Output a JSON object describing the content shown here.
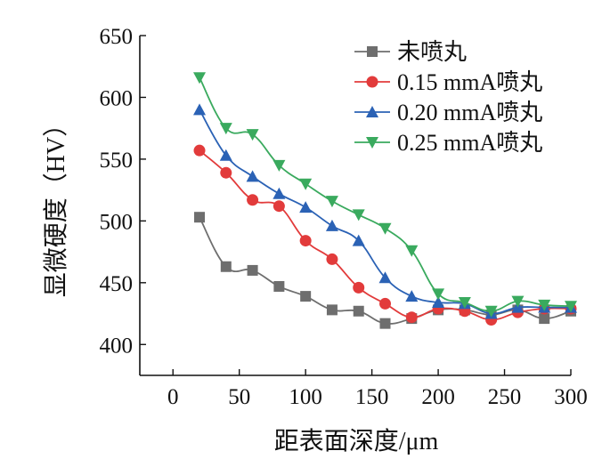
{
  "chart_data": {
    "type": "line",
    "title": "",
    "xlabel": "距表面深度/μm",
    "ylabel": "显微硬度（HV）",
    "xlim": [
      -25,
      300
    ],
    "ylim": [
      375,
      650
    ],
    "xticks": [
      0,
      50,
      100,
      150,
      200,
      250,
      300
    ],
    "yticks": [
      400,
      450,
      500,
      550,
      600,
      650
    ],
    "grid": false,
    "legend_position": "top-right",
    "series": [
      {
        "name": "未喷丸",
        "color": "#6e6e6e",
        "marker": "square",
        "x": [
          20,
          40,
          60,
          80,
          100,
          120,
          140,
          160,
          180,
          200,
          220,
          240,
          260,
          280,
          300
        ],
        "y": [
          503,
          463,
          460,
          447,
          439,
          428,
          427,
          417,
          421,
          428,
          428,
          424,
          428,
          421,
          427
        ]
      },
      {
        "name": "0.15 mmA喷丸",
        "color": "#e23b3b",
        "marker": "circle",
        "x": [
          20,
          40,
          60,
          80,
          100,
          120,
          140,
          160,
          180,
          200,
          220,
          240,
          260,
          280,
          300
        ],
        "y": [
          557,
          539,
          517,
          512,
          484,
          469,
          446,
          433,
          422,
          429,
          427,
          420,
          426,
          429,
          429
        ]
      },
      {
        "name": "0.20 mmA喷丸",
        "color": "#2b62b5",
        "marker": "triangle-up",
        "x": [
          20,
          40,
          60,
          80,
          100,
          120,
          140,
          160,
          180,
          200,
          220,
          240,
          260,
          280,
          300
        ],
        "y": [
          590,
          553,
          536,
          522,
          511,
          496,
          484,
          454,
          439,
          434,
          433,
          425,
          430,
          430,
          430
        ]
      },
      {
        "name": "0.25 mmA喷丸",
        "color": "#3aaa5e",
        "marker": "triangle-down",
        "x": [
          20,
          40,
          60,
          80,
          100,
          120,
          140,
          160,
          180,
          200,
          220,
          240,
          260,
          280,
          300
        ],
        "y": [
          616,
          575,
          570,
          545,
          530,
          516,
          505,
          494,
          476,
          441,
          434,
          427,
          435,
          432,
          431
        ]
      }
    ]
  }
}
